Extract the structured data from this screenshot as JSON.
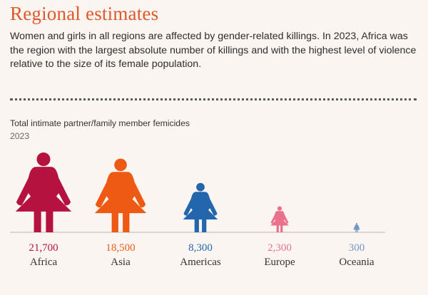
{
  "header": {
    "title": "Regional estimates",
    "subtitle": "Women and girls in all regions are affected by gender-related killings. In 2023, Africa was the region with the largest absolute number of killings and with the highest level of violence relative to the size of its female population."
  },
  "chart_data": {
    "type": "pictogram",
    "title": "Total intimate partner/family member femicides",
    "subtitle": "2023",
    "icon": "woman-figure-icon",
    "series": [
      {
        "category": "Africa",
        "value": 21700,
        "label": "21,700",
        "color": "#b5123f"
      },
      {
        "category": "Asia",
        "value": 18500,
        "label": "18,500",
        "color": "#ee5a13"
      },
      {
        "category": "Americas",
        "value": 8300,
        "label": "8,300",
        "color": "#2366ad"
      },
      {
        "category": "Europe",
        "value": 2300,
        "label": "2,300",
        "color": "#e9718b"
      },
      {
        "category": "Oceania",
        "value": 300,
        "label": "300",
        "color": "#6f96c4"
      }
    ]
  }
}
